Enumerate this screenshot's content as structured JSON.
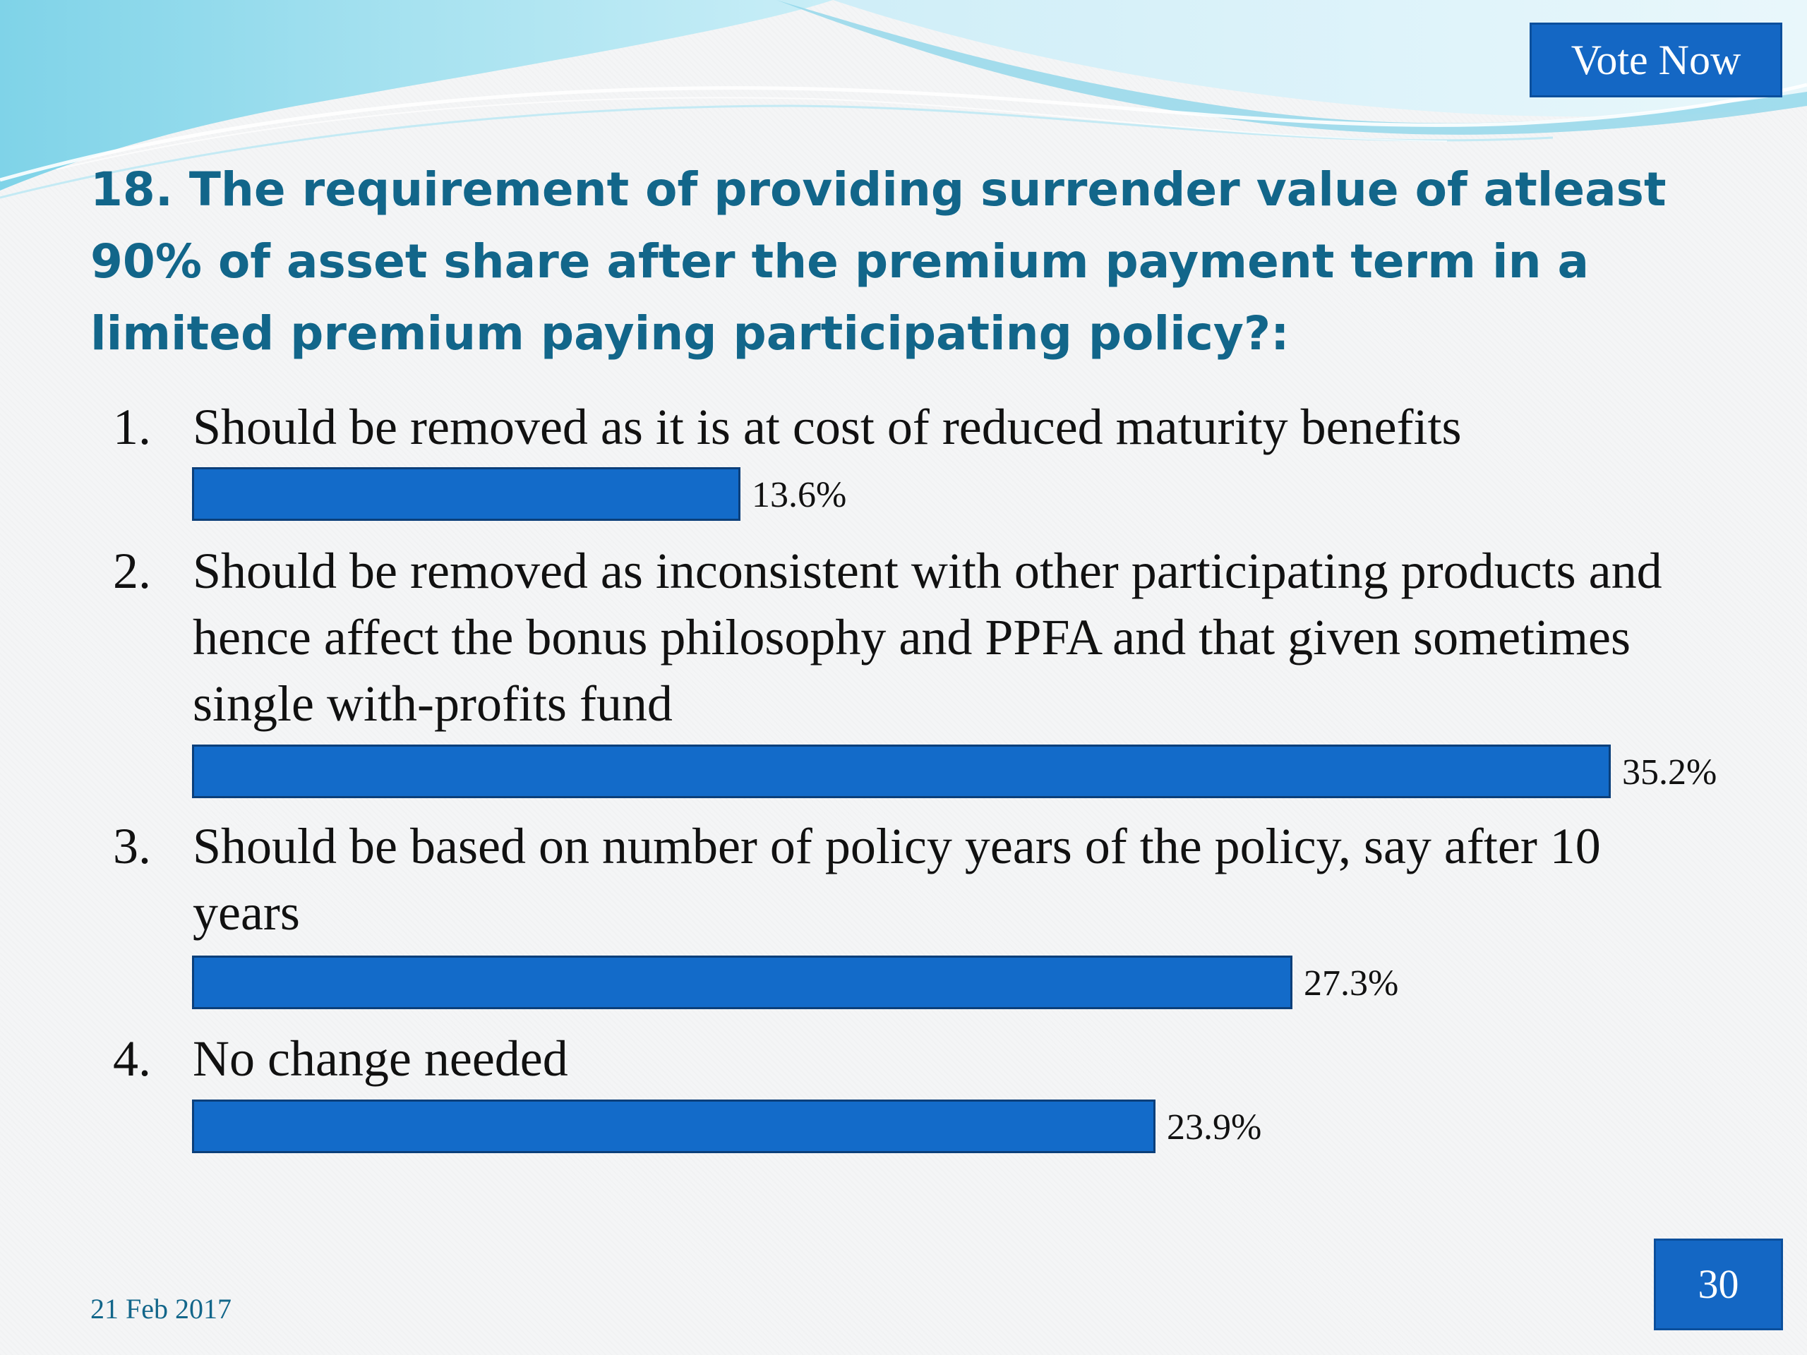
{
  "header": {
    "vote_button_label": "Vote Now"
  },
  "question": {
    "title": "18. The requirement of providing surrender value of atleast 90% of asset share after the premium payment term in a limited premium paying participating policy?:"
  },
  "options": [
    {
      "number": "1.",
      "text": "Should be removed as it is at cost of reduced maturity benefits",
      "percent_label": "13.6%",
      "percent": 13.6
    },
    {
      "number": "2.",
      "text": "Should be removed as inconsistent with other participating products and hence affect the bonus philosophy and PPFA and that given sometimes single with-profits fund",
      "percent_label": "35.2%",
      "percent": 35.2
    },
    {
      "number": "3.",
      "text": "Should be based on number of policy years of the policy, say after 10 years",
      "percent_label": "27.3%",
      "percent": 27.3
    },
    {
      "number": "4.",
      "text": "No change needed",
      "percent_label": "23.9%",
      "percent": 23.9
    }
  ],
  "footer": {
    "date": "21 Feb 2017",
    "page_number": "30"
  },
  "colors": {
    "bar": "#136bc9",
    "title": "#12668a",
    "button": "#1467c4"
  }
}
